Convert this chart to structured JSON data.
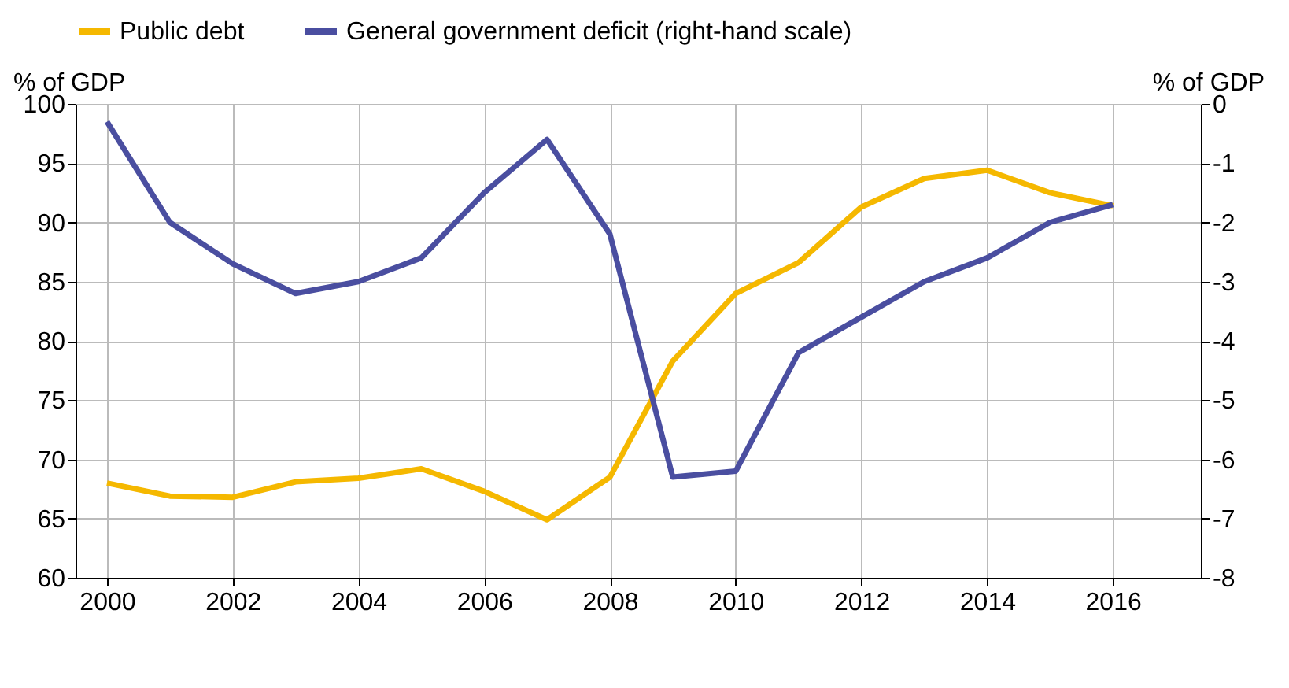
{
  "chart_data": {
    "type": "line",
    "ylabel": "% of GDP",
    "y2label": "% of GDP",
    "x": [
      2000,
      2001,
      2002,
      2003,
      2004,
      2005,
      2006,
      2007,
      2008,
      2009,
      2010,
      2011,
      2012,
      2013,
      2014,
      2015,
      2016
    ],
    "series": [
      {
        "name": "Public debt",
        "color": "#f5b800",
        "values": [
          68.0,
          66.9,
          66.8,
          68.1,
          68.4,
          69.2,
          67.3,
          64.9,
          68.5,
          78.3,
          84.0,
          86.6,
          91.3,
          93.7,
          94.4,
          92.5,
          91.4
        ]
      },
      {
        "name": "General government deficit (right-hand scale)",
        "color": "#4a4ea0",
        "axis": "y2",
        "values": [
          -0.3,
          -2.0,
          -2.7,
          -3.2,
          -3.0,
          -2.6,
          -1.5,
          -0.6,
          -2.2,
          -6.3,
          -6.2,
          -4.2,
          -3.6,
          -3.0,
          -2.6,
          -2.0,
          -1.7
        ]
      }
    ],
    "xlim": [
      1999.5,
      2017.4
    ],
    "xticks": [
      2000,
      2002,
      2004,
      2006,
      2008,
      2010,
      2012,
      2014,
      2016
    ],
    "ylim": [
      60,
      100
    ],
    "yticks": [
      60,
      65,
      70,
      75,
      80,
      85,
      90,
      95,
      100
    ],
    "y2lim": [
      -8,
      0
    ],
    "y2ticks": [
      -8,
      -7,
      -6,
      -5,
      -4,
      -3,
      -2,
      -1,
      0
    ],
    "grid": true,
    "legend": "top",
    "marker": "none",
    "line_style": "solid"
  }
}
